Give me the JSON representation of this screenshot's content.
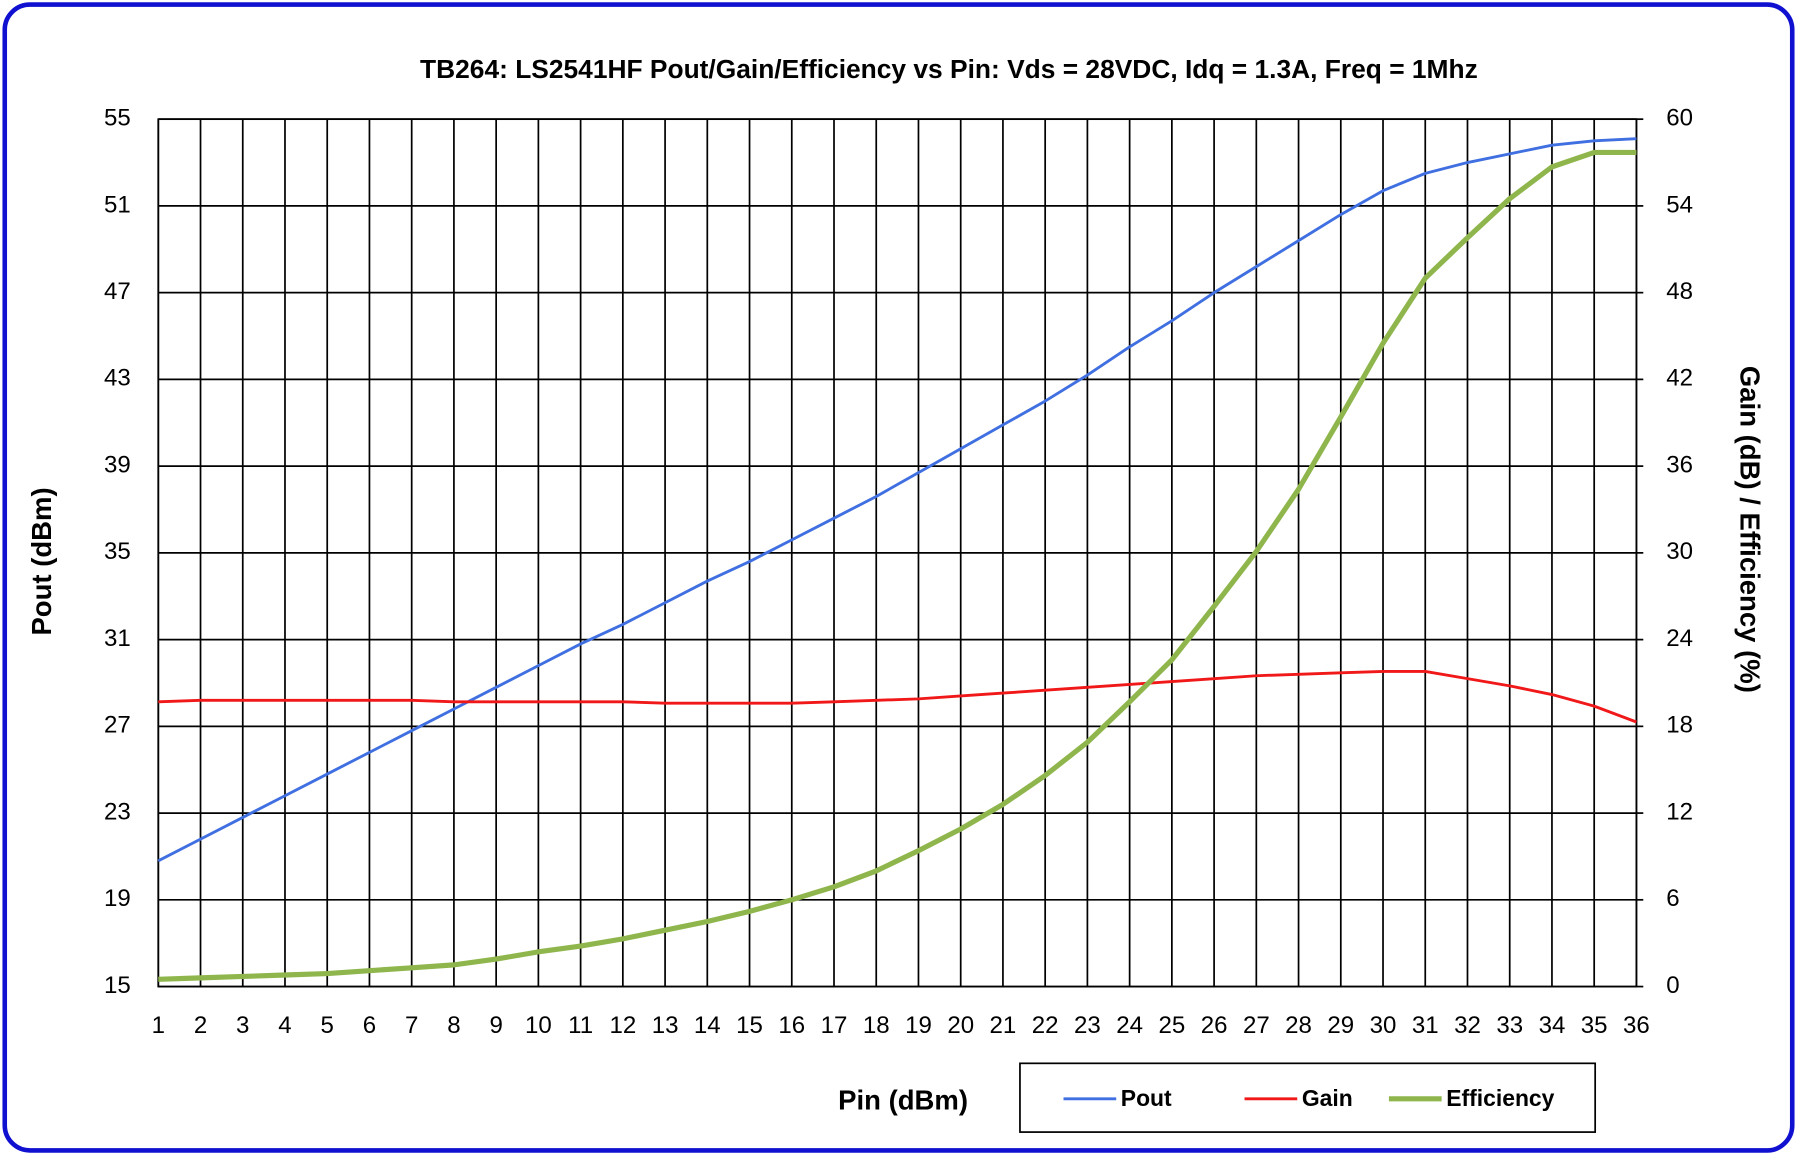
{
  "chart_data": {
    "type": "line",
    "title": "TB264: LS2541HF Pout/Gain/Efficiency vs Pin: Vds = 28VDC, Idq = 1.3A, Freq = 1Mhz",
    "x_label": "Pin (dBm)",
    "y_label": "Pout (dBm)",
    "y2_label": "Gain (dB) / Efficiency (%)",
    "x": [
      1,
      2,
      3,
      4,
      5,
      6,
      7,
      8,
      9,
      10,
      11,
      12,
      13,
      14,
      15,
      16,
      17,
      18,
      19,
      20,
      21,
      22,
      23,
      24,
      25,
      26,
      27,
      28,
      29,
      30,
      31,
      32,
      33,
      34,
      35,
      36
    ],
    "xlim": [
      1,
      36
    ],
    "xticks": [
      1,
      2,
      3,
      4,
      5,
      6,
      7,
      8,
      9,
      10,
      11,
      12,
      13,
      14,
      15,
      16,
      17,
      18,
      19,
      20,
      21,
      22,
      23,
      24,
      25,
      26,
      27,
      28,
      29,
      30,
      31,
      32,
      33,
      34,
      35,
      36
    ],
    "ylim": [
      15,
      55
    ],
    "yticks": [
      15,
      19,
      23,
      27,
      31,
      35,
      39,
      43,
      47,
      51,
      55
    ],
    "y2lim": [
      0,
      60
    ],
    "y2ticks": [
      0,
      6,
      12,
      18,
      24,
      30,
      36,
      42,
      48,
      54,
      60
    ],
    "grid": true,
    "legend": "bottom",
    "series": [
      {
        "name": "Pout",
        "color": "#3f6fe0",
        "axis": "y",
        "values": [
          20.8,
          21.8,
          22.8,
          23.8,
          24.8,
          25.8,
          26.8,
          27.8,
          28.8,
          29.8,
          30.8,
          31.7,
          32.7,
          33.7,
          34.6,
          35.6,
          36.6,
          37.6,
          38.7,
          39.8,
          40.9,
          42.0,
          43.2,
          44.5,
          45.7,
          47.0,
          48.2,
          49.4,
          50.6,
          51.7,
          52.5,
          53.0,
          53.4,
          53.8,
          54.0,
          54.1
        ]
      },
      {
        "name": "Gain",
        "color": "#f01818",
        "axis": "y2",
        "values": [
          19.7,
          19.8,
          19.8,
          19.8,
          19.8,
          19.8,
          19.8,
          19.7,
          19.7,
          19.7,
          19.7,
          19.7,
          19.6,
          19.6,
          19.6,
          19.6,
          19.7,
          19.8,
          19.9,
          20.1,
          20.3,
          20.5,
          20.7,
          20.9,
          21.1,
          21.3,
          21.5,
          21.6,
          21.7,
          21.8,
          21.8,
          21.3,
          20.8,
          20.2,
          19.4,
          18.3
        ]
      },
      {
        "name": "Efficiency",
        "color": "#8fb64c",
        "axis": "y2",
        "values": [
          0.5,
          0.6,
          0.7,
          0.8,
          0.9,
          1.1,
          1.3,
          1.5,
          1.9,
          2.4,
          2.8,
          3.3,
          3.9,
          4.5,
          5.2,
          6.0,
          6.9,
          8.0,
          9.4,
          10.9,
          12.6,
          14.6,
          16.9,
          19.7,
          22.6,
          26.3,
          30.1,
          34.4,
          39.4,
          44.5,
          49.0,
          51.8,
          54.5,
          56.7,
          57.7,
          57.7
        ]
      }
    ]
  }
}
